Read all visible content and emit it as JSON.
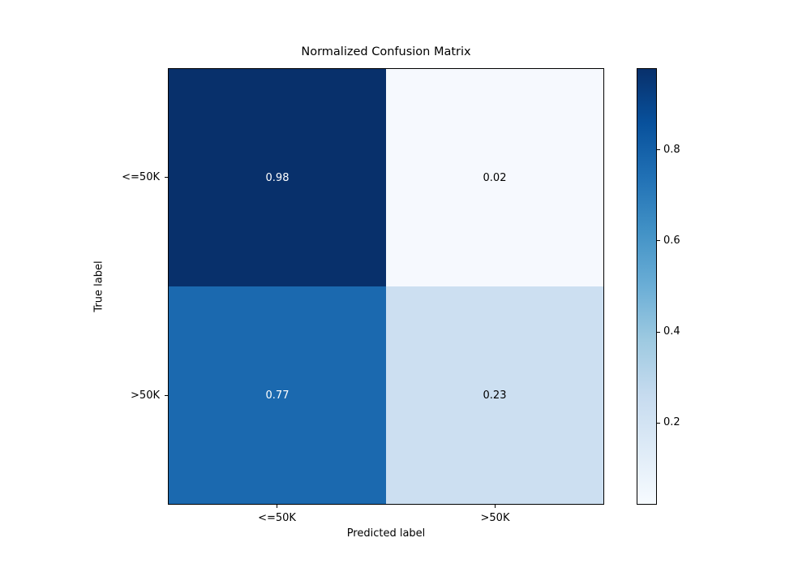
{
  "chart_data": {
    "type": "heatmap",
    "title": "Normalized Confusion Matrix",
    "xlabel": "Predicted label",
    "ylabel": "True label",
    "x_tick_labels": [
      "<=50K",
      ">50K"
    ],
    "y_tick_labels": [
      "<=50K",
      ">50K"
    ],
    "matrix": [
      [
        0.98,
        0.02
      ],
      [
        0.77,
        0.23
      ]
    ],
    "cell_labels": [
      [
        "0.98",
        "0.02"
      ],
      [
        "0.77",
        "0.23"
      ]
    ],
    "cell_colors": [
      [
        "#08306b",
        "#f6f9fe"
      ],
      [
        "#1b69af",
        "#ccdff1"
      ]
    ],
    "cell_text_colors": [
      [
        "#ffffff",
        "#000000"
      ],
      [
        "#ffffff",
        "#000000"
      ]
    ],
    "colormap": "Blues",
    "colorbar": {
      "vmin": 0.02,
      "vmax": 0.98,
      "tick_values": [
        0.8,
        0.6,
        0.4,
        0.2
      ],
      "tick_labels": [
        "0.8",
        "0.6",
        "0.4",
        "0.2"
      ],
      "gradient": [
        {
          "pos": 0,
          "color": "#08306b"
        },
        {
          "pos": 12.5,
          "color": "#08519c"
        },
        {
          "pos": 25,
          "color": "#2171b5"
        },
        {
          "pos": 37.5,
          "color": "#4292c6"
        },
        {
          "pos": 50,
          "color": "#6baed6"
        },
        {
          "pos": 62.5,
          "color": "#9ecae1"
        },
        {
          "pos": 75,
          "color": "#c6dbef"
        },
        {
          "pos": 87.5,
          "color": "#deebf7"
        },
        {
          "pos": 100,
          "color": "#f7fbff"
        }
      ]
    },
    "axis_color": "#000000",
    "background": "#ffffff"
  }
}
